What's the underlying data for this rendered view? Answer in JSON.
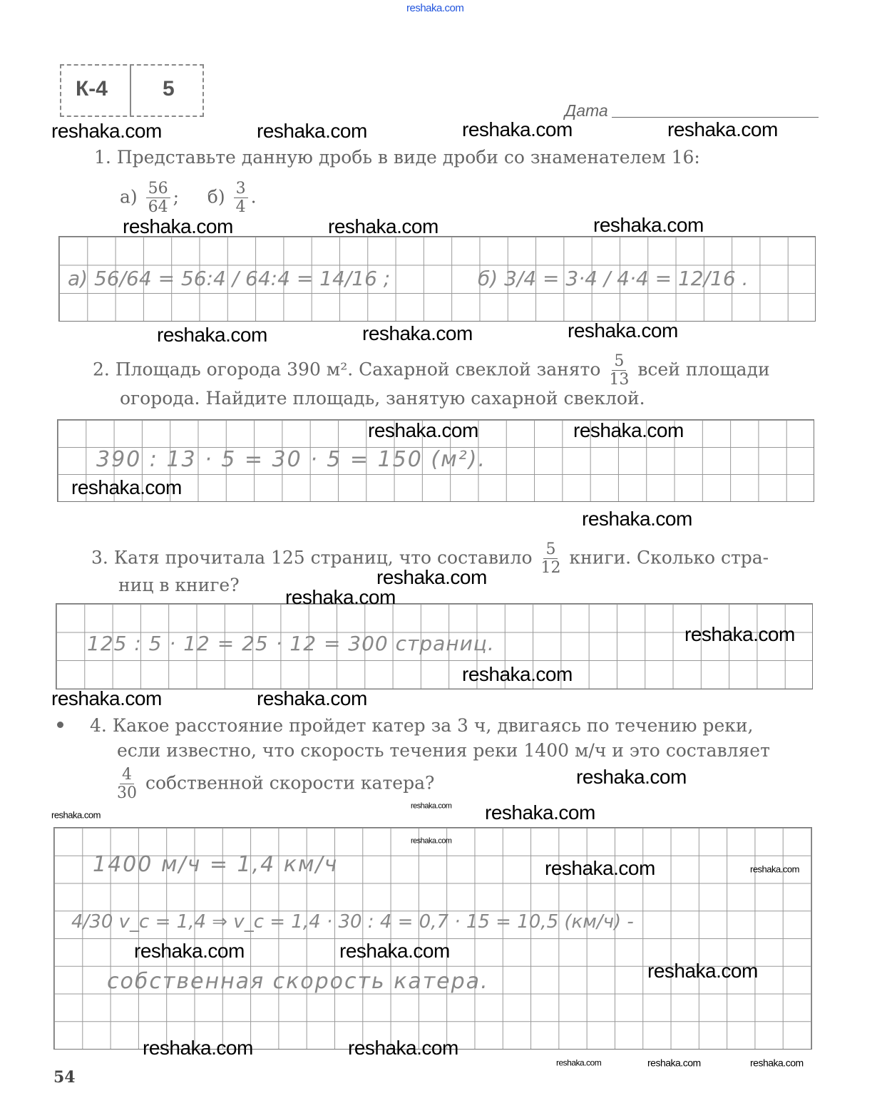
{
  "watermark": "reshaka.com",
  "header": {
    "badge_code": "К-4",
    "badge_variant": "5",
    "date_label": "Дата"
  },
  "tasks": [
    {
      "number": "1.",
      "text": "Представьте данную дробь в виде дроби со знаменателем 16:",
      "a_label": "а)",
      "a_num": "56",
      "a_den": "64",
      "a_sep": ";",
      "b_label": "б)",
      "b_num": "3",
      "b_den": "4",
      "b_end": ".",
      "answer_a": "а) 56/64 = 56:4 / 64:4 = 14/16 ;",
      "answer_b": "б) 3/4 = 3·4 / 4·4 = 12/16 ."
    },
    {
      "number": "2.",
      "text1": "Площадь огорода 390 м². Сахарной свеклой занято",
      "frac_num": "5",
      "frac_den": "13",
      "text2": "всей площади",
      "text3": "огорода. Найдите площадь, занятую сахарной свеклой.",
      "answer": "390 : 13 · 5 = 30 · 5 = 150 (м²)."
    },
    {
      "number": "3.",
      "text1": "Катя прочитала 125 страниц, что составило",
      "frac_num": "5",
      "frac_den": "12",
      "text2": "книги. Сколько стра-",
      "text3": "ниц в книге?",
      "answer": "125 : 5 · 12 = 25 · 12 = 300 страниц."
    },
    {
      "number": "4.",
      "text1": "Какое расстояние пройдет катер за 3 ч, двигаясь по течению реки,",
      "text2": "если известно, что скорость течения реки 1400 м/ч и это составляет",
      "frac_num": "4",
      "frac_den": "30",
      "text3": "собственной скорости катера?",
      "answer_line1": "1400 м/ч = 1,4 км/ч",
      "answer_line2": "4/30 v_c = 1,4 ⇒ v_c = 1,4 · 30 : 4 = 0,7 · 15 = 10,5 (км/ч) -",
      "answer_line3": "собственная скорость катера."
    }
  ],
  "page_number": "54"
}
